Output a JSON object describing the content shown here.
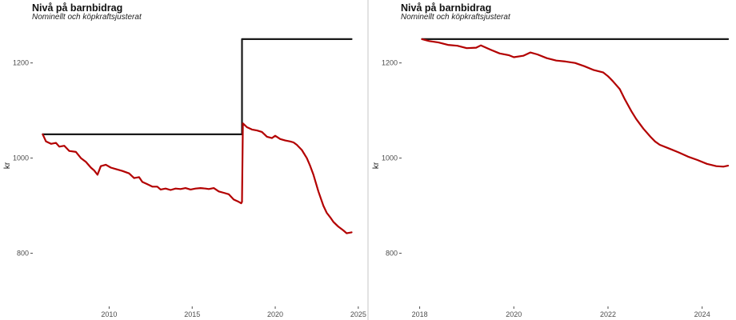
{
  "chart_data": [
    {
      "type": "line",
      "title": "Nivå på barnbidrag",
      "subtitle": "Nominellt och köpkraftsjusterat",
      "ylabel": "kr",
      "xlabel": "",
      "xlim": [
        2005.5,
        2025.2
      ],
      "ylim": [
        690,
        1265
      ],
      "x_ticks": [
        2010,
        2015,
        2020,
        2025
      ],
      "y_ticks": [
        800,
        1000,
        1200
      ],
      "grid": false,
      "legend": "none",
      "colors": {
        "nominal": "#1a1a1a",
        "real": "#b30000"
      },
      "series": [
        {
          "key": "nominal",
          "points": [
            [
              2006.0,
              1050
            ],
            [
              2018.0,
              1050
            ],
            [
              2018.0,
              1250
            ],
            [
              2024.6,
              1250
            ]
          ]
        },
        {
          "key": "real",
          "points": [
            [
              2006.0,
              1050
            ],
            [
              2006.2,
              1035
            ],
            [
              2006.5,
              1030
            ],
            [
              2006.8,
              1032
            ],
            [
              2007.0,
              1024
            ],
            [
              2007.3,
              1026
            ],
            [
              2007.6,
              1015
            ],
            [
              2008.0,
              1013
            ],
            [
              2008.3,
              1000
            ],
            [
              2008.6,
              992
            ],
            [
              2008.9,
              980
            ],
            [
              2009.1,
              974
            ],
            [
              2009.3,
              965
            ],
            [
              2009.5,
              983
            ],
            [
              2009.8,
              986
            ],
            [
              2010.1,
              980
            ],
            [
              2010.4,
              977
            ],
            [
              2010.8,
              973
            ],
            [
              2011.2,
              968
            ],
            [
              2011.5,
              958
            ],
            [
              2011.8,
              960
            ],
            [
              2012.0,
              950
            ],
            [
              2012.3,
              945
            ],
            [
              2012.6,
              940
            ],
            [
              2012.9,
              940
            ],
            [
              2013.1,
              934
            ],
            [
              2013.4,
              936
            ],
            [
              2013.7,
              933
            ],
            [
              2014.0,
              936
            ],
            [
              2014.3,
              935
            ],
            [
              2014.6,
              937
            ],
            [
              2014.9,
              934
            ],
            [
              2015.2,
              936
            ],
            [
              2015.5,
              937
            ],
            [
              2015.8,
              936
            ],
            [
              2016.0,
              935
            ],
            [
              2016.3,
              937
            ],
            [
              2016.6,
              930
            ],
            [
              2016.9,
              927
            ],
            [
              2017.2,
              924
            ],
            [
              2017.5,
              913
            ],
            [
              2017.8,
              908
            ],
            [
              2017.95,
              905
            ],
            [
              2018.0,
              908
            ],
            [
              2018.05,
              1073
            ],
            [
              2018.3,
              1065
            ],
            [
              2018.6,
              1060
            ],
            [
              2018.9,
              1058
            ],
            [
              2019.2,
              1055
            ],
            [
              2019.5,
              1045
            ],
            [
              2019.8,
              1042
            ],
            [
              2020.0,
              1047
            ],
            [
              2020.3,
              1040
            ],
            [
              2020.6,
              1037
            ],
            [
              2020.9,
              1035
            ],
            [
              2021.1,
              1033
            ],
            [
              2021.3,
              1028
            ],
            [
              2021.6,
              1017
            ],
            [
              2021.9,
              1000
            ],
            [
              2022.1,
              984
            ],
            [
              2022.3,
              965
            ],
            [
              2022.6,
              930
            ],
            [
              2022.9,
              900
            ],
            [
              2023.1,
              885
            ],
            [
              2023.3,
              876
            ],
            [
              2023.5,
              866
            ],
            [
              2023.8,
              856
            ],
            [
              2024.1,
              848
            ],
            [
              2024.3,
              842
            ],
            [
              2024.6,
              844
            ]
          ]
        }
      ]
    },
    {
      "type": "line",
      "title": "Nivå på barnbidrag",
      "subtitle": "Nominellt och köpkraftsjusterat",
      "ylabel": "kr",
      "xlabel": "",
      "xlim": [
        2017.65,
        2024.6
      ],
      "ylim": [
        690,
        1265
      ],
      "x_ticks": [
        2018,
        2020,
        2022,
        2024
      ],
      "y_ticks": [
        800,
        1000,
        1200
      ],
      "grid": false,
      "legend": "none",
      "colors": {
        "nominal": "#1a1a1a",
        "real": "#b30000"
      },
      "series": [
        {
          "key": "nominal",
          "points": [
            [
              2018.05,
              1250
            ],
            [
              2024.55,
              1250
            ]
          ]
        },
        {
          "key": "real",
          "points": [
            [
              2018.05,
              1250
            ],
            [
              2018.2,
              1246
            ],
            [
              2018.4,
              1243
            ],
            [
              2018.6,
              1238
            ],
            [
              2018.8,
              1236
            ],
            [
              2019.0,
              1231
            ],
            [
              2019.2,
              1232
            ],
            [
              2019.3,
              1237
            ],
            [
              2019.5,
              1228
            ],
            [
              2019.7,
              1220
            ],
            [
              2019.9,
              1216
            ],
            [
              2020.0,
              1212
            ],
            [
              2020.2,
              1215
            ],
            [
              2020.35,
              1222
            ],
            [
              2020.5,
              1218
            ],
            [
              2020.7,
              1210
            ],
            [
              2020.9,
              1205
            ],
            [
              2021.1,
              1203
            ],
            [
              2021.3,
              1200
            ],
            [
              2021.5,
              1193
            ],
            [
              2021.7,
              1185
            ],
            [
              2021.9,
              1180
            ],
            [
              2022.0,
              1172
            ],
            [
              2022.1,
              1162
            ],
            [
              2022.25,
              1145
            ],
            [
              2022.35,
              1125
            ],
            [
              2022.5,
              1098
            ],
            [
              2022.6,
              1082
            ],
            [
              2022.75,
              1062
            ],
            [
              2022.9,
              1045
            ],
            [
              2023.0,
              1035
            ],
            [
              2023.1,
              1028
            ],
            [
              2023.3,
              1020
            ],
            [
              2023.5,
              1012
            ],
            [
              2023.7,
              1003
            ],
            [
              2023.9,
              996
            ],
            [
              2024.1,
              988
            ],
            [
              2024.3,
              983
            ],
            [
              2024.45,
              982
            ],
            [
              2024.55,
              984
            ]
          ]
        }
      ]
    }
  ]
}
